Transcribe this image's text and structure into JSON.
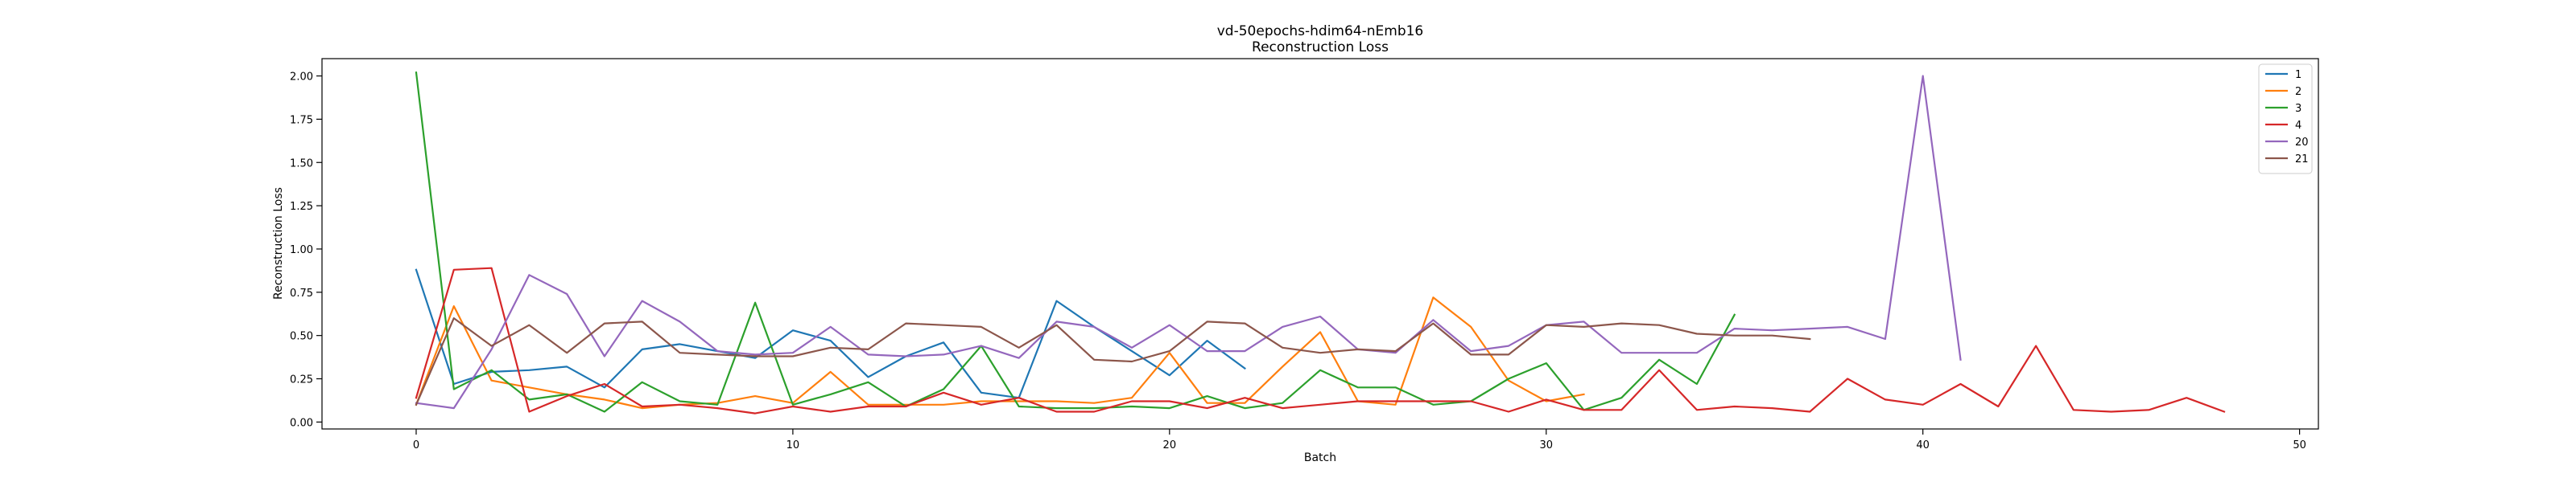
{
  "chart_data": {
    "type": "line",
    "title": "vd-50epochs-hdim64-nEmb16",
    "subtitle": "Reconstruction Loss",
    "xlabel": "Batch",
    "ylabel": "Reconstruction Loss",
    "xlim": [
      -2.5,
      50.5
    ],
    "ylim": [
      -0.04,
      2.1
    ],
    "xticks": [
      0,
      10,
      20,
      30,
      40,
      50
    ],
    "yticks": [
      0.0,
      0.25,
      0.5,
      0.75,
      1.0,
      1.25,
      1.5,
      1.75,
      2.0
    ],
    "xtick_labels": [
      "0",
      "10",
      "20",
      "30",
      "40",
      "50"
    ],
    "ytick_labels": [
      "0.00",
      "0.25",
      "0.50",
      "0.75",
      "1.00",
      "1.25",
      "1.50",
      "1.75",
      "2.00"
    ],
    "grid": false,
    "legend_position": "top-right",
    "series": [
      {
        "name": "1",
        "color": "#1f77b4",
        "values": [
          0.88,
          0.22,
          0.29,
          0.3,
          0.32,
          0.2,
          0.42,
          0.45,
          0.41,
          0.37,
          0.53,
          0.47,
          0.26,
          0.38,
          0.46,
          0.17,
          0.14,
          0.7,
          0.55,
          0.41,
          0.27,
          0.47,
          0.31
        ]
      },
      {
        "name": "2",
        "color": "#ff7f0e",
        "values": [
          0.1,
          0.67,
          0.24,
          0.2,
          0.16,
          0.13,
          0.08,
          0.1,
          0.11,
          0.15,
          0.11,
          0.29,
          0.1,
          0.1,
          0.1,
          0.12,
          0.12,
          0.12,
          0.11,
          0.14,
          0.4,
          0.11,
          0.11,
          0.32,
          0.52,
          0.12,
          0.1,
          0.72,
          0.55,
          0.24,
          0.12,
          0.16
        ]
      },
      {
        "name": "3",
        "color": "#2ca02c",
        "values": [
          2.02,
          0.19,
          0.3,
          0.13,
          0.16,
          0.06,
          0.23,
          0.12,
          0.1,
          0.69,
          0.1,
          0.16,
          0.23,
          0.09,
          0.19,
          0.44,
          0.09,
          0.08,
          0.08,
          0.09,
          0.08,
          0.15,
          0.08,
          0.11,
          0.3,
          0.2,
          0.2,
          0.1,
          0.12,
          0.25,
          0.34,
          0.07,
          0.14,
          0.36,
          0.22,
          0.62
        ]
      },
      {
        "name": "4",
        "color": "#d62728",
        "values": [
          0.14,
          0.88,
          0.89,
          0.06,
          0.15,
          0.22,
          0.09,
          0.1,
          0.08,
          0.05,
          0.09,
          0.06,
          0.09,
          0.09,
          0.17,
          0.1,
          0.14,
          0.06,
          0.06,
          0.12,
          0.12,
          0.08,
          0.14,
          0.08,
          0.1,
          0.12,
          0.12,
          0.12,
          0.12,
          0.06,
          0.13,
          0.07,
          0.07,
          0.3,
          0.07,
          0.09,
          0.08,
          0.06,
          0.25,
          0.13,
          0.1,
          0.22,
          0.09,
          0.44,
          0.07,
          0.06,
          0.07,
          0.14,
          0.06
        ]
      },
      {
        "name": "20",
        "color": "#9467bd",
        "values": [
          0.11,
          0.08,
          0.42,
          0.85,
          0.74,
          0.38,
          0.7,
          0.58,
          0.41,
          0.39,
          0.4,
          0.55,
          0.39,
          0.38,
          0.39,
          0.44,
          0.37,
          0.58,
          0.55,
          0.43,
          0.56,
          0.41,
          0.41,
          0.55,
          0.61,
          0.42,
          0.4,
          0.59,
          0.41,
          0.44,
          0.56,
          0.58,
          0.4,
          0.4,
          0.4,
          0.54,
          0.53,
          0.54,
          0.55,
          0.48,
          2.0,
          0.36
        ]
      },
      {
        "name": "21",
        "color": "#8c564b",
        "values": [
          0.1,
          0.6,
          0.44,
          0.56,
          0.4,
          0.57,
          0.58,
          0.4,
          0.39,
          0.38,
          0.38,
          0.43,
          0.42,
          0.57,
          0.56,
          0.55,
          0.43,
          0.56,
          0.36,
          0.35,
          0.41,
          0.58,
          0.57,
          0.43,
          0.4,
          0.42,
          0.41,
          0.57,
          0.39,
          0.39,
          0.56,
          0.55,
          0.57,
          0.56,
          0.51,
          0.5,
          0.5,
          0.48
        ]
      }
    ]
  }
}
